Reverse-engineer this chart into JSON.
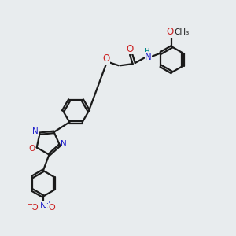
{
  "bg_color": "#e8ecee",
  "bond_color": "#1a1a1a",
  "bond_width": 1.6,
  "dbo": 0.055,
  "N_color": "#2222cc",
  "O_color": "#cc2222",
  "H_color": "#008888",
  "figsize": [
    3.0,
    3.0
  ],
  "dpi": 100,
  "xlim": [
    0,
    10
  ],
  "ylim": [
    0,
    10
  ]
}
